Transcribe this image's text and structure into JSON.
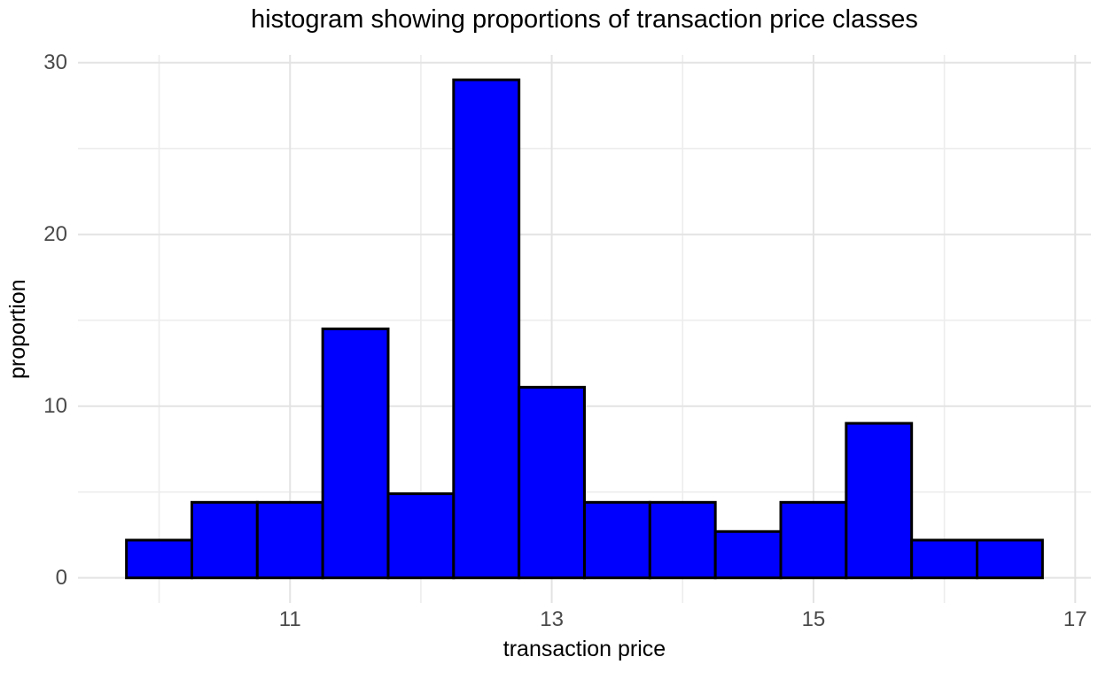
{
  "chart_data": {
    "type": "bar",
    "subtype": "histogram",
    "title": "histogram showing proportions of transaction price classes",
    "xlabel": "transaction price",
    "ylabel": "proportion",
    "bin_start": 9.75,
    "bin_width": 0.5,
    "bin_edges": [
      9.75,
      10.25,
      10.75,
      11.25,
      11.75,
      12.25,
      12.75,
      13.25,
      13.75,
      14.25,
      14.75,
      15.25,
      15.75,
      16.25,
      16.75
    ],
    "values": [
      2.2,
      4.4,
      4.4,
      14.5,
      4.9,
      29.0,
      11.1,
      4.4,
      4.4,
      2.7,
      4.4,
      9.0,
      2.2,
      2.2
    ],
    "x_ticks": [
      11,
      13,
      15,
      17
    ],
    "x_minor_ticks": [
      10,
      12,
      14,
      16
    ],
    "y_ticks": [
      0,
      10,
      20,
      30
    ],
    "y_minor_ticks": [
      5,
      15,
      25
    ],
    "xlim": [
      9.38,
      17.12
    ],
    "ylim": [
      -1.46,
      30.45
    ],
    "grid": true,
    "legend_position": "none",
    "colors": {
      "bar_fill": "#0000ff",
      "bar_stroke": "#000000",
      "grid_major": "#e3e3e3",
      "grid_minor": "#ededed",
      "tick_label": "#4a4a4a",
      "background": "#ffffff"
    }
  }
}
